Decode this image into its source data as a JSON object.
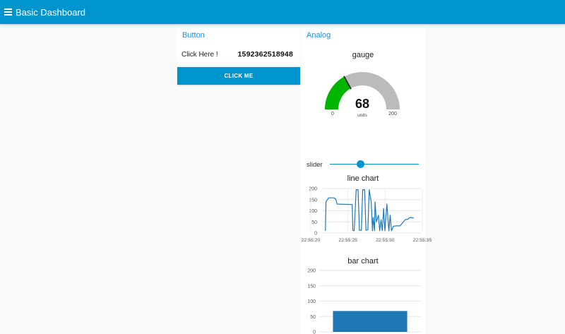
{
  "app": {
    "title": "Basic Dashboard"
  },
  "button_group": {
    "title": "Button",
    "label": "Click Here !",
    "value": "1592362518948",
    "button_label": "CLICK ME"
  },
  "analog_group": {
    "title": "Analog",
    "gauge": {
      "title": "gauge",
      "value": "68",
      "units": "units",
      "min": "0",
      "max": "200",
      "fill_fraction": 0.34,
      "fill_color": "#00b500",
      "bg_color": "#bbbbbb"
    },
    "slider": {
      "label": "slider",
      "fraction": 0.34
    }
  },
  "line_chart": {
    "title": "line chart",
    "y_ticks": [
      "0",
      "50",
      "100",
      "150",
      "200"
    ],
    "x_ticks": [
      "22:55:20",
      "22:55:25",
      "22:55:30",
      "22:55:35"
    ],
    "chart_data": {
      "type": "line",
      "color": "#1f77b4",
      "xlim": [
        0,
        15
      ],
      "ylim": [
        0,
        200
      ],
      "x": [
        0.4,
        0.5,
        0.9,
        1.7,
        2.0,
        2.2,
        4.5,
        4.6,
        4.8,
        5.1,
        5.4,
        5.6,
        5.9,
        6.1,
        6.4,
        6.6,
        6.9,
        7.1,
        7.4,
        7.6,
        7.7,
        7.9,
        8.0,
        8.2,
        8.5,
        8.7,
        8.9,
        9.1,
        9.3,
        9.5,
        9.8,
        10.1,
        10.3,
        10.5,
        10.8,
        11.1,
        11.8,
        12.6,
        13.0,
        13.2,
        13.5,
        13.9
      ],
      "y": [
        10,
        140,
        158,
        158,
        152,
        130,
        128,
        12,
        10,
        195,
        195,
        12,
        12,
        195,
        195,
        12,
        15,
        195,
        140,
        10,
        70,
        10,
        140,
        50,
        80,
        10,
        60,
        10,
        110,
        10,
        130,
        10,
        80,
        10,
        30,
        32,
        32,
        60,
        62,
        68,
        70,
        68
      ]
    }
  },
  "bar_chart": {
    "title": "bar chart",
    "y_ticks": [
      "0",
      "50",
      "100",
      "150",
      "200"
    ],
    "chart_data": {
      "type": "bar",
      "color": "#1f77b4",
      "categories": [
        ""
      ],
      "values": [
        68
      ],
      "ylim": [
        0,
        200
      ]
    }
  }
}
